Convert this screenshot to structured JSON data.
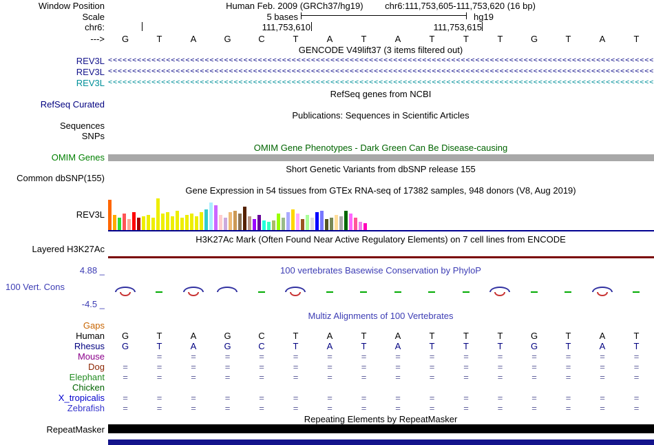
{
  "colors": {
    "omim_bar": "#a8a8a8",
    "gtex_baseline": "#000090",
    "h3k27ac_line": "#7a0000",
    "repeatmasker_bar": "#000000",
    "bottom_bar": "#14148c",
    "title_blue": "#3c3cb4",
    "title_green": "#006400"
  },
  "ruler": {
    "window_position_label": "Window Position",
    "assembly_title": "Human Feb. 2009 (GRCh37/hg19)",
    "position_range": "chr6:111,753,605-111,753,620 (16 bp)",
    "scale_label": "Scale",
    "scale_value": "5 bases",
    "assembly": "hg19",
    "chrom_label": "chr6:",
    "coord_left": "111,753,610",
    "coord_right": "111,753,615",
    "strand_label": "--->",
    "bases": [
      "G",
      "T",
      "A",
      "G",
      "C",
      "T",
      "A",
      "T",
      "A",
      "T",
      "T",
      "T",
      "G",
      "T",
      "A",
      "T"
    ]
  },
  "tracks": {
    "gencode": {
      "title": "GENCODE V49lift37 (3 items filtered out)",
      "genes": [
        {
          "label": "REV3L",
          "color": "#14148c"
        },
        {
          "label": "REV3L",
          "color": "#14148c"
        },
        {
          "label": "REV3L",
          "color": "#009099"
        }
      ]
    },
    "refseq": {
      "title": "RefSeq genes from NCBI",
      "label": "RefSeq Curated"
    },
    "publications": {
      "title": "Publications: Sequences in Scientific Articles",
      "sequences_label": "Sequences",
      "snps_label": "SNPs"
    },
    "omim": {
      "title": "OMIM Gene Phenotypes - Dark Green Can Be Disease-causing",
      "label": "OMIM Genes"
    },
    "dbsnp": {
      "title": "Short Genetic Variants from dbSNP release 155",
      "label": "Common dbSNP(155)"
    },
    "gtex": {
      "title": "Gene Expression in 54 tissues from GTEx RNA-seq of 17382 samples, 948 donors (V8, Aug 2019)",
      "label": "REV3L",
      "bars": [
        [
          "#FF6600",
          44
        ],
        [
          "#FFAA00",
          22
        ],
        [
          "#33DD33",
          18
        ],
        [
          "#FF5555",
          24
        ],
        [
          "#FFAA99",
          16
        ],
        [
          "#FF0000",
          26
        ],
        [
          "#AA0000",
          18
        ],
        [
          "#EEEE00",
          20
        ],
        [
          "#EEEE00",
          22
        ],
        [
          "#EEEE00",
          18
        ],
        [
          "#EEEE00",
          46
        ],
        [
          "#EEEE00",
          24
        ],
        [
          "#EEEE00",
          26
        ],
        [
          "#EEEE00",
          20
        ],
        [
          "#EEEE00",
          28
        ],
        [
          "#EEEE00",
          18
        ],
        [
          "#EEEE00",
          22
        ],
        [
          "#EEEE00",
          24
        ],
        [
          "#EEEE00",
          20
        ],
        [
          "#EEEE00",
          26
        ],
        [
          "#33CCCC",
          30
        ],
        [
          "#AAEEFF",
          40
        ],
        [
          "#CC66FF",
          36
        ],
        [
          "#FFCCCC",
          22
        ],
        [
          "#CCAADD",
          18
        ],
        [
          "#EEBB77",
          26
        ],
        [
          "#CC9955",
          28
        ],
        [
          "#8B7355",
          24
        ],
        [
          "#552200",
          34
        ],
        [
          "#BB9988",
          20
        ],
        [
          "#9900FF",
          16
        ],
        [
          "#660099",
          22
        ],
        [
          "#22FFDD",
          14
        ],
        [
          "#33FFC2",
          12
        ],
        [
          "#AABB66",
          14
        ],
        [
          "#99FF00",
          24
        ],
        [
          "#99BB88",
          18
        ],
        [
          "#AAAAFF",
          26
        ],
        [
          "#FFD700",
          30
        ],
        [
          "#FFAAFF",
          24
        ],
        [
          "#995522",
          16
        ],
        [
          "#AAFF99",
          22
        ],
        [
          "#DDDDDD",
          18
        ],
        [
          "#0000FF",
          26
        ],
        [
          "#7777FF",
          28
        ],
        [
          "#555522",
          16
        ],
        [
          "#778855",
          18
        ],
        [
          "#FFDD99",
          22
        ],
        [
          "#AAAAAA",
          20
        ],
        [
          "#006600",
          28
        ],
        [
          "#FF66FF",
          24
        ],
        [
          "#FF5599",
          18
        ],
        [
          "#EE82EE",
          12
        ],
        [
          "#FF00BB",
          10
        ]
      ]
    },
    "h3k27ac": {
      "title": "H3K27Ac Mark (Often Found Near Active Regulatory Elements) on 7 cell lines from ENCODE",
      "label": "Layered H3K27Ac"
    },
    "phylop": {
      "title": "100 vertebrates Basewise Conservation by PhyloP",
      "label": "100 Vert. Cons",
      "max_label": "4.88 _",
      "min_label": "-4.5 _",
      "marks": [
        {
          "b": 1,
          "r": 1,
          "g": 0
        },
        {
          "b": 0,
          "r": 0,
          "g": 1
        },
        {
          "b": 1,
          "r": 1,
          "g": 0
        },
        {
          "b": 1,
          "r": 0,
          "g": 0
        },
        {
          "b": 0,
          "r": 0,
          "g": 1
        },
        {
          "b": 1,
          "r": 1,
          "g": 0
        },
        {
          "b": 0,
          "r": 0,
          "g": 1
        },
        {
          "b": 0,
          "r": 0,
          "g": 1
        },
        {
          "b": 0,
          "r": 0,
          "g": 1
        },
        {
          "b": 0,
          "r": 0,
          "g": 1
        },
        {
          "b": 0,
          "r": 0,
          "g": 1
        },
        {
          "b": 1,
          "r": 1,
          "g": 0
        },
        {
          "b": 0,
          "r": 0,
          "g": 1
        },
        {
          "b": 0,
          "r": 0,
          "g": 1
        },
        {
          "b": 1,
          "r": 1,
          "g": 0
        },
        {
          "b": 0,
          "r": 0,
          "g": 1
        }
      ]
    },
    "multiz": {
      "title": "Multiz Alignments of 100 Vertebrates",
      "gaps_label": "Gaps",
      "species": [
        {
          "name": "Human",
          "color": "#000000",
          "cell_color": "#000000",
          "cells": [
            "G",
            "T",
            "A",
            "G",
            "C",
            "T",
            "A",
            "T",
            "A",
            "T",
            "T",
            "T",
            "G",
            "T",
            "A",
            "T"
          ]
        },
        {
          "name": "Rhesus",
          "color": "#000080",
          "cell_color": "#000080",
          "cells": [
            "G",
            "T",
            "A",
            "G",
            "C",
            "T",
            "A",
            "T",
            "A",
            "T",
            "T",
            "T",
            "G",
            "T",
            "A",
            "T"
          ]
        },
        {
          "name": "Mouse",
          "color": "#8b008b",
          "cell_color": "#60609c",
          "cells": [
            "",
            "=",
            "=",
            "=",
            "=",
            "=",
            "=",
            "=",
            "=",
            "=",
            "=",
            "=",
            "=",
            "=",
            "=",
            "="
          ]
        },
        {
          "name": "Dog",
          "color": "#8b2500",
          "cell_color": "#60609c",
          "cells": [
            "=",
            "=",
            "=",
            "=",
            "=",
            "=",
            "=",
            "=",
            "=",
            "=",
            "=",
            "=",
            "=",
            "=",
            "=",
            "="
          ]
        },
        {
          "name": "Elephant",
          "color": "#228b22",
          "cell_color": "#60609c",
          "cells": [
            "=",
            "=",
            "=",
            "=",
            "=",
            "=",
            "=",
            "=",
            "=",
            "=",
            "=",
            "=",
            "=",
            "=",
            "=",
            "="
          ]
        },
        {
          "name": "Chicken",
          "color": "#006400",
          "cell_color": "#60609c",
          "cells": [
            "",
            "",
            "",
            "",
            "",
            "",
            "",
            "",
            "",
            "",
            "",
            "",
            "",
            "",
            "",
            ""
          ]
        },
        {
          "name": "X_tropicalis",
          "color": "#0000cd",
          "cell_color": "#60609c",
          "cells": [
            "=",
            "=",
            "=",
            "=",
            "=",
            "=",
            "=",
            "=",
            "=",
            "=",
            "=",
            "=",
            "=",
            "=",
            "=",
            "="
          ]
        },
        {
          "name": "Zebrafish",
          "color": "#3333cc",
          "cell_color": "#60609c",
          "cells": [
            "=",
            "=",
            "=",
            "=",
            "=",
            "=",
            "=",
            "=",
            "=",
            "=",
            "=",
            "=",
            "=",
            "=",
            "=",
            "="
          ]
        }
      ]
    },
    "repeatmasker": {
      "title": "Repeating Elements by RepeatMasker",
      "label": "RepeatMasker"
    }
  }
}
